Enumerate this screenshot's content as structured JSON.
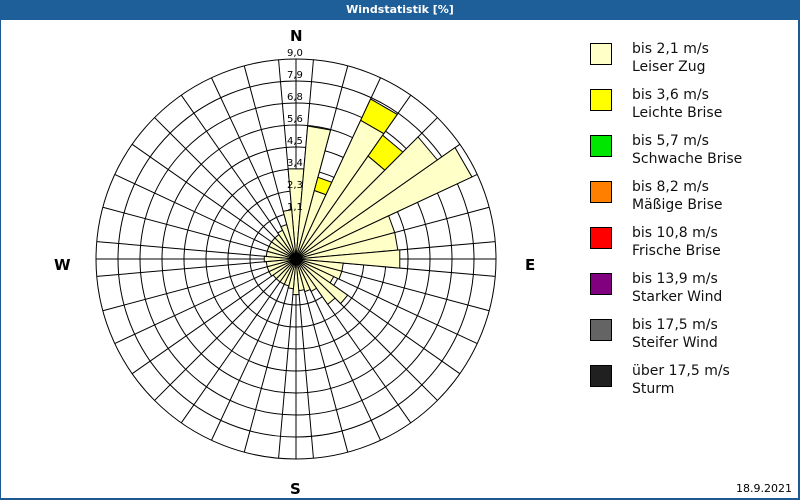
{
  "window": {
    "title": "Windstatistik [%]"
  },
  "footer": {
    "date": "18.9.2021"
  },
  "compass": {
    "n": "N",
    "e": "E",
    "s": "S",
    "w": "W"
  },
  "legend": [
    {
      "range": "bis 2,1 m/s",
      "name": "Leiser Zug",
      "color": "#ffffc8"
    },
    {
      "range": "bis 3,6 m/s",
      "name": "Leichte Brise",
      "color": "#ffff00"
    },
    {
      "range": "bis 5,7 m/s",
      "name": "Schwache Brise",
      "color": "#00e600"
    },
    {
      "range": "bis 8,2 m/s",
      "name": "Mäßige Brise",
      "color": "#ff8000"
    },
    {
      "range": "bis 10,8 m/s",
      "name": "Frische Brise",
      "color": "#ff0000"
    },
    {
      "range": "bis 13,9 m/s",
      "name": "Starker Wind",
      "color": "#800080"
    },
    {
      "range": "bis 17,5 m/s",
      "name": "Steifer Wind",
      "color": "#646464"
    },
    {
      "range": "über 17,5 m/s",
      "name": "Sturm",
      "color": "#202020"
    }
  ],
  "chart_data": {
    "type": "wind-rose",
    "title": "Windstatistik [%]",
    "unit": "%",
    "radial_ticks": [
      "1,1",
      "2,3",
      "3,4",
      "4,5",
      "5,6",
      "6,8",
      "7,9",
      "9,0"
    ],
    "rmax": 9.0,
    "sector_width_deg": 10,
    "directions_deg": [
      0,
      10,
      20,
      30,
      40,
      50,
      60,
      70,
      80,
      90,
      100,
      110,
      120,
      130,
      140,
      150,
      160,
      170,
      180,
      190,
      200,
      210,
      220,
      230,
      240,
      250,
      260,
      270,
      280,
      290,
      300,
      310,
      320,
      330,
      340,
      350
    ],
    "series": [
      {
        "name": "bis 2,1 m/s",
        "color": "#ffffc8",
        "values": [
          3.4,
          5.6,
          2.4,
          6.6,
          5.2,
          7.6,
          8.7,
          4.0,
          4.0,
          4.1,
          1.2,
          1.2,
          0.9,
          2.0,
          1.6,
          0.6,
          0.5,
          0.4,
          0.6,
          0.3,
          0.2,
          0.2,
          0.2,
          0.2,
          0.3,
          0.3,
          0.3,
          0.4,
          0.3,
          0.3,
          0.3,
          0.3,
          0.3,
          0.4,
          0.6,
          1.3
        ]
      },
      {
        "name": "bis 3,6 m/s",
        "color": "#ffff00",
        "values": [
          0,
          0,
          0.7,
          1.2,
          1.3,
          0,
          0,
          0,
          0,
          0,
          0,
          0,
          0,
          0,
          0,
          0,
          0,
          0,
          0,
          0,
          0,
          0,
          0,
          0,
          0,
          0,
          0,
          0,
          0,
          0,
          0,
          0,
          0,
          0,
          0,
          0
        ]
      },
      {
        "name": "bis 5,7 m/s",
        "color": "#00e600",
        "values": [
          0,
          0,
          0,
          0,
          0,
          0,
          0,
          0,
          0,
          0,
          0,
          0,
          0,
          0,
          0,
          0,
          0,
          0,
          0,
          0,
          0,
          0,
          0,
          0,
          0,
          0,
          0,
          0,
          0,
          0,
          0,
          0,
          0,
          0,
          0,
          0
        ]
      },
      {
        "name": "bis 8,2 m/s",
        "color": "#ff8000",
        "values": [
          0,
          0,
          0,
          0,
          0,
          0,
          0,
          0,
          0,
          0,
          0,
          0,
          0,
          0,
          0,
          0,
          0,
          0,
          0,
          0,
          0,
          0,
          0,
          0,
          0,
          0,
          0,
          0,
          0,
          0,
          0,
          0,
          0,
          0,
          0,
          0
        ]
      }
    ],
    "compass_labels": [
      "N",
      "E",
      "S",
      "W"
    ],
    "legend_position": "right"
  }
}
